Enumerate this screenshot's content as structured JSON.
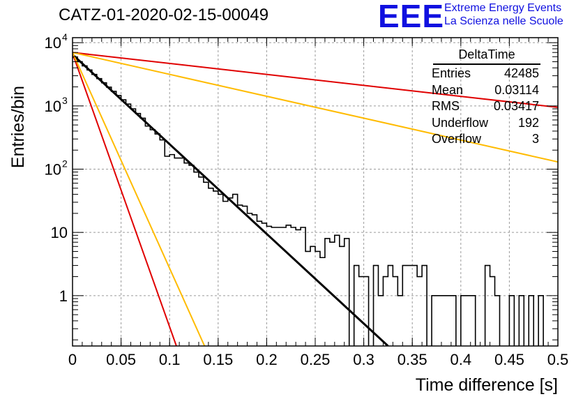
{
  "header": {
    "run_title": "CATZ-01-2020-02-15-00049",
    "logo_mark": "EEE",
    "logo_line1": "Extreme Energy Events",
    "logo_line2": "La Scienza nelle Scuole"
  },
  "stats_box": {
    "title": "DeltaTime",
    "rows": [
      {
        "label": "Entries",
        "value": "42485"
      },
      {
        "label": "Mean",
        "value": "0.03114"
      },
      {
        "label": "RMS",
        "value": "0.03417"
      },
      {
        "label": "Underflow",
        "value": "192"
      },
      {
        "label": "Overflow",
        "value": "3"
      }
    ]
  },
  "colors": {
    "histogram": "#000000",
    "fit": "#000000",
    "red": "#e00000",
    "orange": "#ffbb00",
    "grid": "#9a9a9a"
  },
  "chart_data": {
    "type": "line",
    "title": "CATZ-01-2020-02-15-00049",
    "xlabel": "Time difference [s]",
    "ylabel": "Entries/bin",
    "xlim": [
      0,
      0.5
    ],
    "ylim": [
      0.16,
      12000
    ],
    "yscale": "log",
    "grid": true,
    "x_ticks": [
      "0",
      "0.05",
      "0.1",
      "0.15",
      "0.2",
      "0.25",
      "0.3",
      "0.35",
      "0.4",
      "0.45",
      "0.5"
    ],
    "y_ticks": [
      {
        "value": 1,
        "label": "1"
      },
      {
        "value": 10,
        "label": "10"
      },
      {
        "value": 100,
        "label": "10",
        "exp": "2"
      },
      {
        "value": 1000,
        "label": "10",
        "exp": "3"
      },
      {
        "value": 10000,
        "label": "10",
        "exp": "4"
      }
    ],
    "histogram": {
      "bin_width": 0.005,
      "values": [
        5800,
        5000,
        4300,
        3700,
        3150,
        2700,
        2320,
        1980,
        1700,
        1460,
        1250,
        1070,
        900,
        760,
        640,
        480,
        420,
        360,
        290,
        160,
        170,
        150,
        150,
        125,
        115,
        90,
        75,
        62,
        50,
        45,
        40,
        31,
        35,
        40,
        27,
        26,
        20,
        19,
        15,
        14,
        12.5,
        12,
        12,
        12,
        13,
        12,
        11,
        12,
        5,
        6,
        5,
        4,
        8,
        7,
        9,
        6,
        8,
        0,
        3,
        2,
        2,
        0,
        3,
        1,
        2,
        3,
        2,
        1,
        3,
        3,
        3,
        2,
        3,
        0,
        1,
        1,
        1,
        1,
        1,
        0,
        1,
        1,
        1,
        0,
        0,
        3,
        2,
        1,
        0,
        0,
        1,
        0,
        1,
        0,
        1,
        0,
        1,
        0,
        0,
        0
      ]
    },
    "curves": [
      {
        "color": "black",
        "points": [
          [
            0,
            6500
          ],
          [
            0.325,
            0.16
          ]
        ]
      },
      {
        "color": "red",
        "points": [
          [
            0,
            6800
          ],
          [
            0.107,
            0.16
          ]
        ]
      },
      {
        "color": "red",
        "points": [
          [
            0,
            7000
          ],
          [
            0.5,
            950
          ]
        ]
      },
      {
        "color": "orange",
        "points": [
          [
            0,
            7000
          ],
          [
            0.136,
            0.16
          ]
        ]
      },
      {
        "color": "orange",
        "points": [
          [
            0,
            7000
          ],
          [
            0.5,
            130
          ]
        ]
      }
    ]
  }
}
